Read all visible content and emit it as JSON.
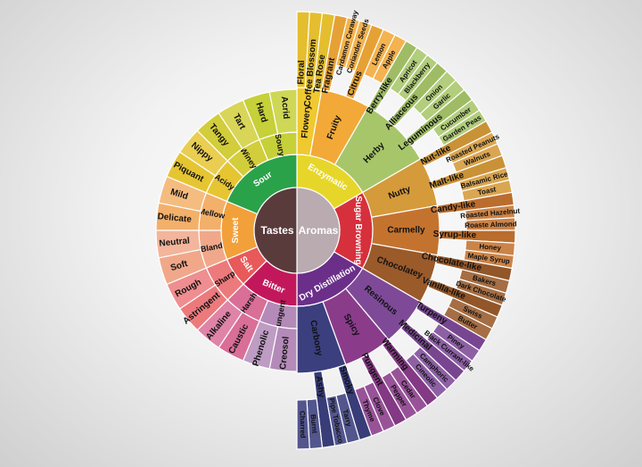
{
  "center": {
    "left_label": "Tastes",
    "right_label": "Aromas",
    "left_color": "#5a3b3c",
    "right_color": "#b9abb0"
  },
  "tastes": [
    {
      "name": "Sour",
      "color": "#2aa24a",
      "subs": [
        {
          "name": "Acidy",
          "color": "#e6c532",
          "outer": [
            "Piquant",
            "Nippy"
          ]
        },
        {
          "name": "Winey",
          "color": "#d2cd3a",
          "outer": [
            "Tangy",
            "Tart"
          ]
        },
        {
          "name": "Soury",
          "color": "#c6d038",
          "outer": [
            "Hard",
            "Acrid"
          ]
        }
      ]
    },
    {
      "name": "Sweet",
      "color": "#f2a03a",
      "subs": [
        {
          "name": "Bland",
          "color": "#f1a88a",
          "outer": [
            "Soft",
            "Neutral"
          ]
        },
        {
          "name": "Mellow",
          "color": "#f3b06a",
          "outer": [
            "Delicate",
            "Mild"
          ]
        }
      ]
    },
    {
      "name": "Salt",
      "color": "#e8595a",
      "subs": [
        {
          "name": "Sharp",
          "color": "#ec7a7c",
          "outer": [
            "Astringent",
            "Rough"
          ]
        }
      ]
    },
    {
      "name": "Bitter",
      "color": "#c2185b",
      "subs": [
        {
          "name": "Pungent",
          "color": "#b38ab8",
          "outer": [
            "Creosol",
            "Phenolic"
          ]
        },
        {
          "name": "Harsh",
          "color": "#d96e97",
          "outer": [
            "Caustic",
            "Alkaline"
          ]
        }
      ]
    }
  ],
  "aromas": [
    {
      "name": "Enzymatic",
      "color": "#e7d62a",
      "subs": [
        {
          "name": "Flowery",
          "color": "#f0c830",
          "outer": [
            "Floral",
            "Coffee Blossom",
            "Tea Rose"
          ]
        },
        {
          "name": "Fruity",
          "color": "#f2a938",
          "outer": [
            "Fragrant",
            "Cardamon Caraway",
            "Coriander Seeds",
            "Citrus",
            "Lemon",
            "Apple"
          ]
        },
        {
          "name": "Herby",
          "color": "#a7c66a",
          "outer": [
            "Berry-like",
            "Apricot",
            "Blackberry",
            "Alliaceous",
            "Onion",
            "Garlic",
            "Leguminous",
            "Cucumber",
            "Garden Peas"
          ]
        }
      ]
    },
    {
      "name": "Sugar Browning",
      "color": "#d6303c",
      "subs": [
        {
          "name": "Nutty",
          "color": "#d59a3a",
          "outer": [
            "Nut-like",
            "Roasted Peanuts",
            "Walnuts",
            "Malt-like",
            "Balsamic Rice",
            "Toast"
          ]
        },
        {
          "name": "Carmelly",
          "color": "#c4732f",
          "outer": [
            "Candy-like",
            "Roasted Hazelnut",
            "Roaste Almond",
            "Syrup-like",
            "Honey",
            "Maple Syrup"
          ]
        },
        {
          "name": "Chocolatey",
          "color": "#9a5a2a",
          "outer": [
            "Chocolate-like",
            "Bakers",
            "Dark Chocolate",
            "Vanilla-like",
            "Swiss",
            "Butter"
          ]
        }
      ]
    },
    {
      "name": "Dry Distillation",
      "color": "#6b2f8a",
      "subs": [
        {
          "name": "Resinous",
          "color": "#7e4a98",
          "outer": [
            "Turpeny",
            "Piney",
            "Black Currant-like",
            "Medicinal",
            "Camphoric",
            "Cineolic"
          ]
        },
        {
          "name": "Spicy",
          "color": "#8a3c8a",
          "outer": [
            "Warming",
            "Cedar",
            "Pepper",
            "Pungent",
            "Clove",
            "Thyme"
          ]
        },
        {
          "name": "Carbony",
          "color": "#3b3f7e",
          "outer": [
            "Smoky",
            "Tarry",
            "Pipe Tobacco",
            "Ashy",
            "Burnt",
            "Charred"
          ]
        }
      ]
    }
  ]
}
